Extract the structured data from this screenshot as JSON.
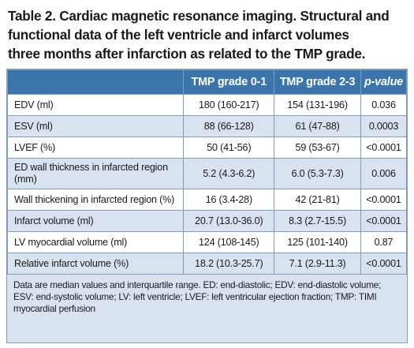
{
  "caption": {
    "line1": "Table 2. Cardiac magnetic resonance imaging. Structural and",
    "line2": "functional data of the left ventricle and infarct volumes",
    "line3": "three months after infarction as related to the TMP grade."
  },
  "table": {
    "headers": [
      "",
      "TMP grade 0-1",
      "TMP grade 2-3",
      "p-value"
    ],
    "rows": [
      {
        "label": "EDV (ml)",
        "g01": "180 (160-217)",
        "g23": "154 (131-196)",
        "p": "0.036"
      },
      {
        "label": "ESV (ml)",
        "g01": "88 (66-128)",
        "g23": "61 (47-88)",
        "p": "0.0003"
      },
      {
        "label": "LVEF (%)",
        "g01": "50 (41-56)",
        "g23": "59 (53-67)",
        "p": "<0.0001"
      },
      {
        "label": "ED wall thickness in infarcted region (mm)",
        "g01": "5.2 (4.3-6.2)",
        "g23": "6.0 (5.3-7.3)",
        "p": "0.006"
      },
      {
        "label": "Wall thickening in infarcted region (%)",
        "g01": "16 (3.4-28)",
        "g23": "42 (21-81)",
        "p": "<0.0001"
      },
      {
        "label": "Infarct volume (ml)",
        "g01": "20.7 (13.0-36.0)",
        "g23": "8.3 (2.7-15.5)",
        "p": "<0.0001"
      },
      {
        "label": "LV myocardial volume (ml)",
        "g01": "124 (108-145)",
        "g23": "125 (101-140)",
        "p": "0.87"
      },
      {
        "label": "Relative infarct volume (%)",
        "g01": "18.2 (10.3-25.7)",
        "g23": "7.1 (2.9-11.3)",
        "p": "<0.0001"
      }
    ],
    "note": "Data are median values and interquartile range. ED: end-diastolic; EDV: end-diastolic volume; ESV: end-systolic volume; LV: left ventricle; LVEF: left ventricular ejection fraction; TMP: TIMI myocardial perfusion"
  }
}
